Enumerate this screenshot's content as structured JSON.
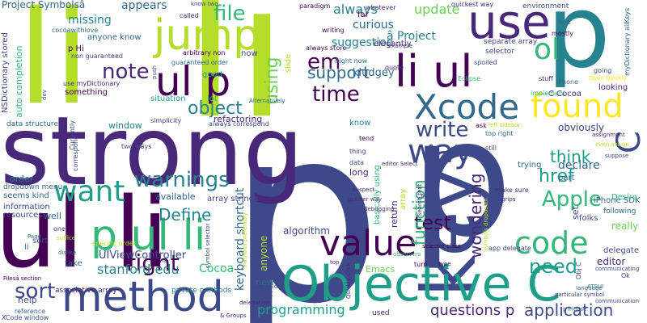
{
  "colors": {
    "background": "#ffffff",
    "palette": [
      "#440154",
      "#482878",
      "#3e4989",
      "#31688e",
      "#26828e",
      "#1f9e89",
      "#35b779",
      "#6ece58",
      "#b5de2b",
      "#fde725"
    ]
  },
  "words": [
    {
      "text": "p",
      "color": "#3e4989",
      "weight": 1.0
    },
    {
      "text": "p",
      "color": "#3e4989",
      "weight": 0.8
    },
    {
      "text": "li",
      "color": "#b5de2b",
      "weight": 0.78
    },
    {
      "text": "li",
      "color": "#b5de2b",
      "weight": 0.55
    },
    {
      "text": "strong",
      "color": "#482878",
      "weight": 0.5
    },
    {
      "text": "ul li",
      "color": "#440154",
      "weight": 0.48
    },
    {
      "text": "p",
      "color": "#26828e",
      "weight": 0.42
    },
    {
      "text": "key",
      "color": "#3e4989",
      "weight": 0.4
    },
    {
      "text": "Objective C",
      "color": "#1f9e89",
      "weight": 0.34
    },
    {
      "text": "p ul li",
      "color": "#35b779",
      "weight": 0.3
    },
    {
      "text": "method",
      "color": "#3e4989",
      "weight": 0.28
    },
    {
      "text": "use",
      "color": "#482878",
      "weight": 0.27
    },
    {
      "text": "jump",
      "color": "#b5de2b",
      "weight": 0.26
    },
    {
      "text": "ul p",
      "color": "#440154",
      "weight": 0.26
    },
    {
      "text": "li ul",
      "color": "#440154",
      "weight": 0.26
    },
    {
      "text": "value",
      "color": "#440154",
      "weight": 0.22
    },
    {
      "text": "Xcode",
      "color": "#31688e",
      "weight": 0.21
    },
    {
      "text": "found",
      "color": "#fde725",
      "weight": 0.2
    },
    {
      "text": "code",
      "color": "#35b779",
      "weight": 0.18
    },
    {
      "text": "way",
      "color": "#3e4989",
      "weight": 0.18
    },
    {
      "text": "C",
      "color": "#3e4989",
      "weight": 0.18
    },
    {
      "text": "want",
      "color": "#1f9e89",
      "weight": 0.16
    },
    {
      "text": "ol",
      "color": "#35b779",
      "weight": 0.16
    },
    {
      "text": "test",
      "color": "#440154",
      "weight": 0.13
    },
    {
      "text": "time",
      "color": "#440154",
      "weight": 0.13
    },
    {
      "text": "em",
      "color": "#440154",
      "weight": 0.12
    },
    {
      "text": "file",
      "color": "#35b779",
      "weight": 0.12
    },
    {
      "text": "right",
      "color": "#440154",
      "weight": 0.12
    },
    {
      "text": "note",
      "color": "#482878",
      "weight": 0.12
    },
    {
      "text": "warnings",
      "color": "#26828e",
      "weight": 0.12
    },
    {
      "text": "Apple",
      "color": "#35b779",
      "weight": 0.11
    },
    {
      "text": "need",
      "color": "#1f9e89",
      "weight": 0.11
    },
    {
      "text": "write",
      "color": "#3e4989",
      "weight": 0.11
    },
    {
      "text": "sort",
      "color": "#3e4989",
      "weight": 0.11
    },
    {
      "text": "object",
      "color": "#26828e",
      "weight": 0.1
    },
    {
      "text": "using",
      "color": "#6ece58",
      "weight": 0.1
    },
    {
      "text": "think",
      "color": "#1f9e89",
      "weight": 0.09
    },
    {
      "text": "support",
      "color": "#31688e",
      "weight": 0.09
    },
    {
      "text": "href",
      "color": "#1f9e89",
      "weight": 0.08
    },
    {
      "text": "function",
      "color": "#35b779",
      "weight": 0.08
    },
    {
      "text": "Define",
      "color": "#26828e",
      "weight": 0.08
    },
    {
      "text": "wondering",
      "color": "#482878",
      "weight": 0.08
    },
    {
      "text": "application",
      "color": "#3e4989",
      "weight": 0.08
    },
    {
      "text": "programming",
      "color": "#1f9e89",
      "weight": 0.08
    },
    {
      "text": "questions p",
      "color": "#482878",
      "weight": 0.08
    },
    {
      "text": "keyboard shortcut",
      "color": "#31688e",
      "weight": 0.07
    },
    {
      "text": "stanford edu",
      "color": "#26828e",
      "weight": 0.07
    },
    {
      "text": "Cocoa",
      "color": "#35b779",
      "weight": 0.07
    },
    {
      "text": "always",
      "color": "#26828e",
      "weight": 0.07
    },
    {
      "text": "update",
      "color": "#6ece58",
      "weight": 0.07
    },
    {
      "text": "appears",
      "color": "#31688e",
      "weight": 0.06
    },
    {
      "text": "missing",
      "color": "#26828e",
      "weight": 0.06
    },
    {
      "text": "â Project",
      "color": "#26828e",
      "weight": 0.06
    },
    {
      "text": "curious",
      "color": "#31688e",
      "weight": 0.06
    },
    {
      "text": "suggestion",
      "color": "#26828e",
      "weight": 0.06
    },
    {
      "text": "kludgey",
      "color": "#31688e",
      "weight": 0.05
    },
    {
      "text": "obviously",
      "color": "#3e4989",
      "weight": 0.05
    },
    {
      "text": "declare",
      "color": "#31688e",
      "weight": 0.05
    },
    {
      "text": "really",
      "color": "#6ece58",
      "weight": 0.05
    },
    {
      "text": "editor",
      "color": "#482878",
      "weight": 0.05
    },
    {
      "text": "UIViewController",
      "color": "#3e4989",
      "weight": 0.05
    },
    {
      "text": "algorithm",
      "color": "#3e4989",
      "weight": 0.05
    },
    {
      "text": "anyone",
      "color": "#b5de2b",
      "weight": 0.05
    },
    {
      "text": "refactoring",
      "color": "#482878",
      "weight": 0.04
    },
    {
      "text": "long",
      "color": "#482878",
      "weight": 0.04
    },
    {
      "text": "return",
      "color": "#482878",
      "weight": 0.04
    },
    {
      "text": "window",
      "color": "#26828e",
      "weight": 0.04
    },
    {
      "text": "available",
      "color": "#31688e",
      "weight": 0.04
    },
    {
      "text": "information",
      "color": "#3e4989",
      "weight": 0.04
    },
    {
      "text": "well",
      "color": "#31688e",
      "weight": 0.04
    },
    {
      "text": "order",
      "color": "#26828e",
      "weight": 0.04
    },
    {
      "text": "new",
      "color": "#31688e",
      "weight": 0.04
    },
    {
      "text": "plist",
      "color": "#3e4989",
      "weight": 0.04
    },
    {
      "text": "help",
      "color": "#3e4989",
      "weight": 0.04
    },
    {
      "text": "Emacs",
      "color": "#6ece58",
      "weight": 0.04
    },
    {
      "text": "set",
      "color": "#3e4989",
      "weight": 0.04
    },
    {
      "text": "Project Symbolsâ",
      "color": "#31688e",
      "weight": 0.04
    },
    {
      "text": "auto completion",
      "color": "#35b779",
      "weight": 0.04
    },
    {
      "text": "NSDictionary stored",
      "color": "#3e4989",
      "weight": 0.04
    },
    {
      "text": "anyone know",
      "color": "#31688e",
      "weight": 0.03
    },
    {
      "text": "something",
      "color": "#440154",
      "weight": 0.03
    },
    {
      "text": "situation",
      "color": "#1f9e89",
      "weight": 0.03
    },
    {
      "text": "lot",
      "color": "#35b779",
      "weight": 0.03
    },
    {
      "text": "good",
      "color": "#1f9e89",
      "weight": 0.03
    },
    {
      "text": "now",
      "color": "#3e4989",
      "weight": 0.03
    },
    {
      "text": "know",
      "color": "#26828e",
      "weight": 0.03
    },
    {
      "text": "slide",
      "color": "#b5de2b",
      "weight": 0.03
    },
    {
      "text": "basically using",
      "color": "#35b779",
      "weight": 0.03
    },
    {
      "text": "array",
      "color": "#b5de2b",
      "weight": 0.03
    },
    {
      "text": "looking",
      "color": "#482878",
      "weight": 0.03
    },
    {
      "text": "part",
      "color": "#31688e",
      "weight": 0.03
    },
    {
      "text": "folks",
      "color": "#3e4989",
      "weight": 0.03
    },
    {
      "text": "p Hi",
      "color": "#440154",
      "weight": 0.03
    },
    {
      "text": "far",
      "color": "#440154",
      "weight": 0.03
    },
    {
      "text": "C Cocoa",
      "color": "#482878",
      "weight": 0.03
    },
    {
      "text": "elegantly",
      "color": "#482878",
      "weight": 0.03
    },
    {
      "text": "sort",
      "color": "#3e4989",
      "weight": 0.03
    },
    {
      "text": "seems kind",
      "color": "#31688e",
      "weight": 0.03
    },
    {
      "text": "resources",
      "color": "#3e4989",
      "weight": 0.03
    },
    {
      "text": "dropdown menu",
      "color": "#31688e",
      "weight": 0.03
    },
    {
      "text": "li",
      "color": "#31688e",
      "weight": 0.03
    },
    {
      "text": "take",
      "color": "#31688e",
      "weight": 0.03
    },
    {
      "text": "data structure",
      "color": "#31688e",
      "weight": 0.03
    },
    {
      "text": "trying",
      "color": "#31688e",
      "weight": 0.03
    },
    {
      "text": "iPhone SDK",
      "color": "#31688e",
      "weight": 0.03
    },
    {
      "text": "Desire",
      "color": "#35b779",
      "weight": 0.03
    },
    {
      "text": "following",
      "color": "#31688e",
      "weight": 0.03
    },
    {
      "text": "delegate",
      "color": "#3e4989",
      "weight": 0.03
    },
    {
      "text": "array strings",
      "color": "#3e4989",
      "weight": 0.03
    },
    {
      "text": "private methods",
      "color": "#26828e",
      "weight": 0.03
    },
    {
      "text": "associative array",
      "color": "#482878",
      "weight": 0.02
    },
    {
      "text": "environment",
      "color": "#3e4989",
      "weight": 0.02
    },
    {
      "text": "selector",
      "color": "#3e4989",
      "weight": 0.02
    },
    {
      "text": "separate array",
      "color": "#3e4989",
      "weight": 0.02
    },
    {
      "text": "implement",
      "color": "#35b779",
      "weight": 0.02
    },
    {
      "text": "iPhone",
      "color": "#31688e",
      "weight": 0.02
    },
    {
      "text": "spoiled",
      "color": "#3e4989",
      "weight": 0.02
    },
    {
      "text": "going",
      "color": "#3e4989",
      "weight": 0.02
    },
    {
      "text": "quickest way",
      "color": "#482878",
      "weight": 0.02
    },
    {
      "text": "called",
      "color": "#482878",
      "weight": 0.02
    },
    {
      "text": "non guaranteed",
      "color": "#3e4989",
      "weight": 0.02
    },
    {
      "text": "guaranteed order",
      "color": "#31688e",
      "weight": 0.02
    },
    {
      "text": "arbitrary non",
      "color": "#440154",
      "weight": 0.02
    },
    {
      "text": "use myDictionary",
      "color": "#482878",
      "weight": 0.02
    },
    {
      "text": "cocoawithlove",
      "color": "#31688e",
      "weight": 0.02
    },
    {
      "text": "public interface",
      "color": "#b5de2b",
      "weight": 0.02
    },
    {
      "text": "Currently",
      "color": "#3e4989",
      "weight": 0.02
    },
    {
      "text": "correspond",
      "color": "#3e4989",
      "weight": 0.02
    },
    {
      "text": "two ways",
      "color": "#3e4989",
      "weight": 0.02
    },
    {
      "text": "simplicity",
      "color": "#3e4989",
      "weight": 0.02
    },
    {
      "text": "always correspond",
      "color": "#3e4989",
      "weight": 0.02
    },
    {
      "text": "Alternatively",
      "color": "#31688e",
      "weight": 0.02
    },
    {
      "text": "always store",
      "color": "#440154",
      "weight": 0.02
    },
    {
      "text": "Right now",
      "color": "#31688e",
      "weight": 0.02
    },
    {
      "text": "writing",
      "color": "#440154",
      "weight": 0.02
    },
    {
      "text": "paradigm",
      "color": "#440154",
      "weight": 0.02
    },
    {
      "text": "whatever",
      "color": "#482878",
      "weight": 0.02
    },
    {
      "text": "example",
      "color": "#3e4989",
      "weight": 0.02
    },
    {
      "text": "quote",
      "color": "#482878",
      "weight": 0.02
    },
    {
      "text": "stuff",
      "color": "#482878",
      "weight": 0.02
    },
    {
      "text": "mostly",
      "color": "#440154",
      "weight": 0.02
    },
    {
      "text": "first",
      "color": "#31688e",
      "weight": 0.02
    },
    {
      "text": "myDictionary allKeys",
      "color": "#31688e",
      "weight": 0.02
    },
    {
      "text": "Eclipse",
      "color": "#35b779",
      "weight": 0.02
    },
    {
      "text": "Open Quickly",
      "color": "#fde725",
      "weight": 0.02
    },
    {
      "text": "ask",
      "color": "#440154",
      "weight": 0.02
    },
    {
      "text": "left sidebar",
      "color": "#b5de2b",
      "weight": 0.02
    },
    {
      "text": "top right",
      "color": "#31688e",
      "weight": 0.02
    },
    {
      "text": "assignment",
      "color": "#482878",
      "weight": 0.02
    },
    {
      "text": "even assign",
      "color": "#b5de2b",
      "weight": 0.02
    },
    {
      "text": "suppose",
      "color": "#3e4989",
      "weight": 0.02
    },
    {
      "text": "tend",
      "color": "#440154",
      "weight": 0.02
    },
    {
      "text": "thing",
      "color": "#3e4989",
      "weight": 0.02
    },
    {
      "text": "data",
      "color": "#3e4989",
      "weight": 0.02
    },
    {
      "text": "editor Select",
      "color": "#482878",
      "weight": 0.02
    },
    {
      "text": "still",
      "color": "#3e4989",
      "weight": 0.02
    },
    {
      "text": "find",
      "color": "#3e4989",
      "weight": 0.02
    },
    {
      "text": "Search text",
      "color": "#482878",
      "weight": 0.02
    },
    {
      "text": "make sure",
      "color": "#482878",
      "weight": 0.02
    },
    {
      "text": "grips",
      "color": "#482878",
      "weight": 0.02
    },
    {
      "text": "suspect",
      "color": "#482878",
      "weight": 0.02
    },
    {
      "text": "quicker way",
      "color": "#482878",
      "weight": 0.02
    },
    {
      "text": "debugging",
      "color": "#482878",
      "weight": 0.02
    },
    {
      "text": "Vim",
      "color": "#3e4989",
      "weight": 0.02
    },
    {
      "text": "Symbols dropdown",
      "color": "#b5de2b",
      "weight": 0.02
    },
    {
      "text": "app delegate",
      "color": "#3e4989",
      "weight": 0.02
    },
    {
      "text": "selector class",
      "color": "#440154",
      "weight": 0.02
    },
    {
      "text": "observers",
      "color": "#35b779",
      "weight": 0.02
    },
    {
      "text": "turn",
      "color": "#440154",
      "weight": 0.02
    },
    {
      "text": "type",
      "color": "#440154",
      "weight": 0.02
    },
    {
      "text": "Obj C",
      "color": "#3e4989",
      "weight": 0.02
    },
    {
      "text": "ATSUI",
      "color": "#31688e",
      "weight": 0.02
    },
    {
      "text": "language",
      "color": "#31688e",
      "weight": 0.02
    },
    {
      "text": "particular symbol",
      "color": "#3e4989",
      "weight": 0.02
    },
    {
      "text": "Ok",
      "color": "#3e4989",
      "weight": 0.02
    },
    {
      "text": "communicating",
      "color": "#3e4989",
      "weight": 0.02
    },
    {
      "text": "communication",
      "color": "#3e4989",
      "weight": 0.02
    },
    {
      "text": "p Please",
      "color": "#31688e",
      "weight": 0.02
    },
    {
      "text": "though",
      "color": "#3e4989",
      "weight": 0.02
    },
    {
      "text": "used",
      "color": "#482878",
      "weight": 0.02
    },
    {
      "text": "top",
      "color": "#482878",
      "weight": 0.02
    },
    {
      "text": "Quickly Click",
      "color": "#482878",
      "weight": 0.02
    },
    {
      "text": "text field",
      "color": "#3e4989",
      "weight": 0.02
    },
    {
      "text": "delegation",
      "color": "#482878",
      "weight": 0.02
    },
    {
      "text": "& Groups",
      "color": "#482878",
      "weight": 0.02
    },
    {
      "text": "Filesâ section",
      "color": "#440154",
      "weight": 0.02
    },
    {
      "text": "reference",
      "color": "#31688e",
      "weight": 0.02
    },
    {
      "text": "XCode window",
      "color": "#3e4989",
      "weight": 0.02
    },
    {
      "text": "ha",
      "color": "#3e4989",
      "weight": 0.02
    },
    {
      "text": "specific order",
      "color": "#b5de2b",
      "weight": 0.02
    },
    {
      "text": "symbol selector",
      "color": "#3e4989",
      "weight": 0.02
    },
    {
      "text": "dislike",
      "color": "#31688e",
      "weight": 0.02
    },
    {
      "text": "one",
      "color": "#3e4989",
      "weight": 0.02
    },
    {
      "text": "Page",
      "color": "#31688e",
      "weight": 0.02
    },
    {
      "text": "suffice",
      "color": "#b5de2b",
      "weight": 0.02
    },
    {
      "text": "know two",
      "color": "#3e4989",
      "weight": 0.02
    },
    {
      "text": "push",
      "color": "#3e4989",
      "weight": 0.02
    },
    {
      "text": "dev",
      "color": "#3e4989",
      "weight": 0.02
    },
    {
      "text": "methods preferably",
      "color": "#b5de2b",
      "weight": 0.02
    }
  ]
}
